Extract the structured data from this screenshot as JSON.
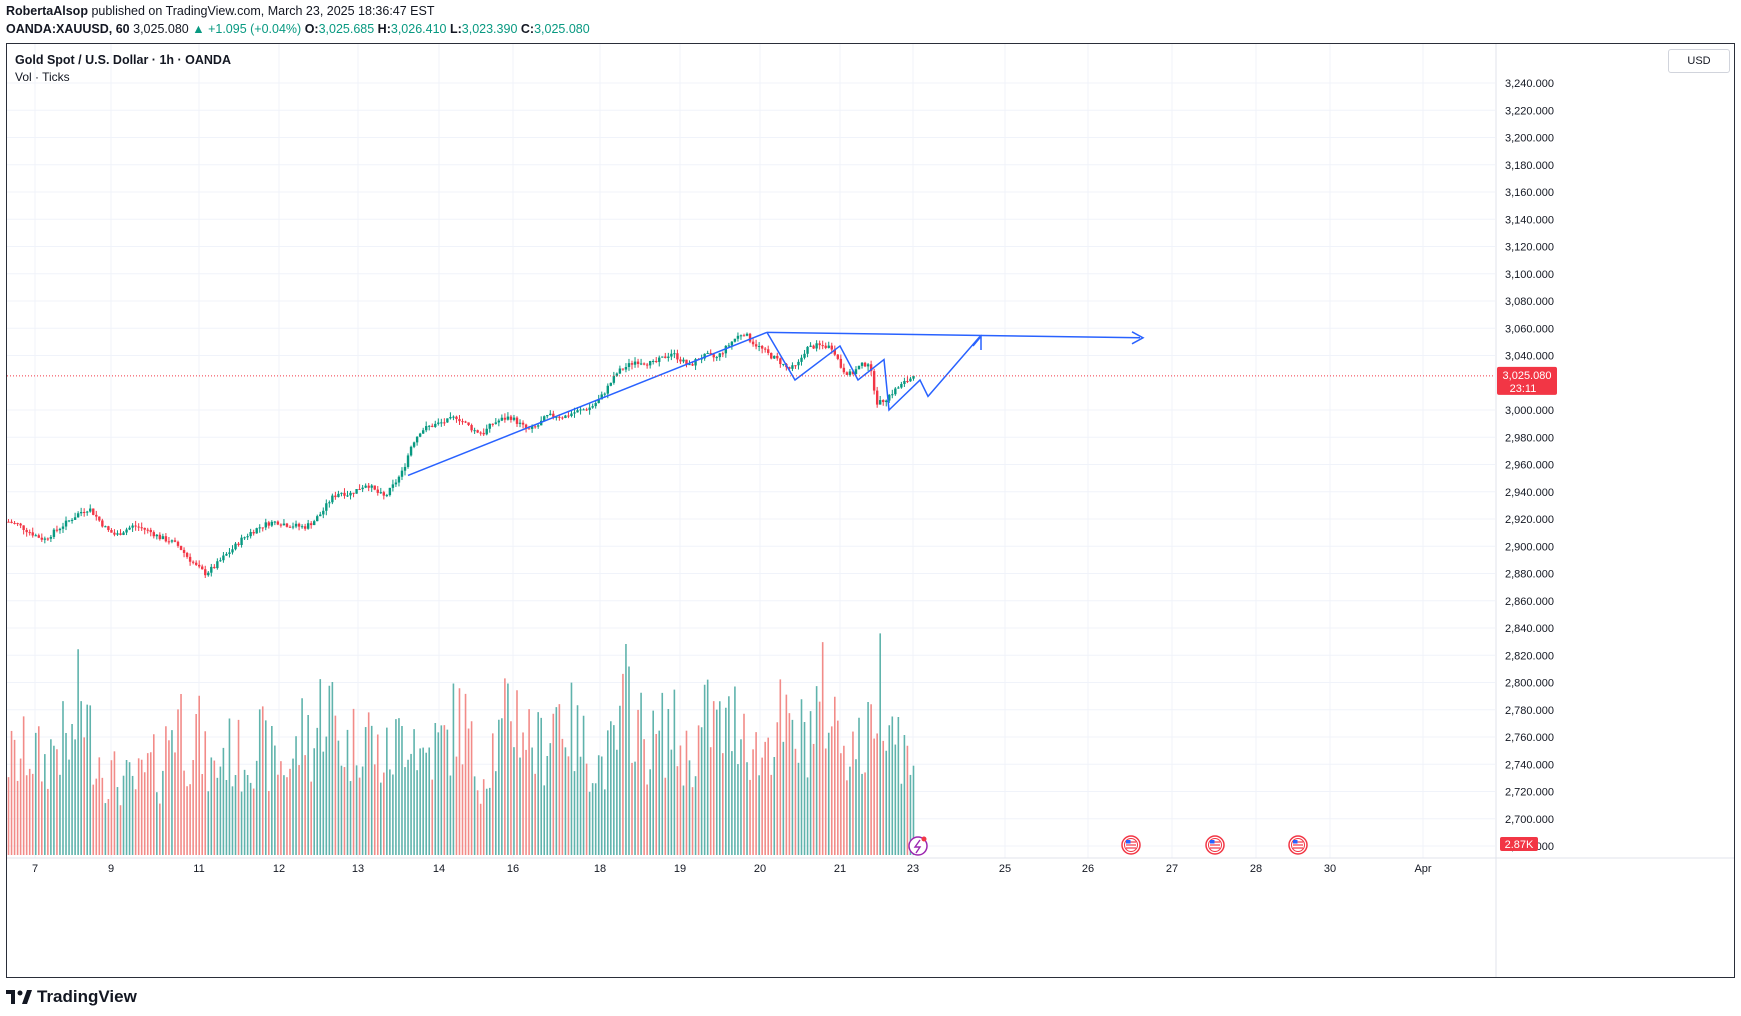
{
  "header": {
    "author": "RobertaAlsop",
    "published": "published on TradingView.com, March 23, 2025 18:36:47 EST",
    "symbol_line": {
      "symbol": "OANDA:XAUUSD, 60",
      "last": "3,025.080",
      "change": "+1.095 (+0.04%)",
      "o_label": "O:",
      "o": "3,025.685",
      "h_label": "H:",
      "h": "3,026.410",
      "l_label": "L:",
      "l": "3,023.390",
      "c_label": "C:",
      "c": "3,025.080"
    }
  },
  "legend": {
    "title": "Gold Spot / U.S. Dollar · 1h · OANDA",
    "indicator": "Vol · Ticks"
  },
  "currency_button": "USD",
  "price_badge": {
    "price": "3,025.080",
    "countdown": "23:11"
  },
  "volume_badge": "2.87K",
  "footer": {
    "brand": "TradingView"
  },
  "colors": {
    "up": "#089981",
    "down": "#f23645",
    "vol_up": "#5fb3ac",
    "vol_down": "#f28b88",
    "drawing": "#2962ff",
    "grid": "#f0f3fa"
  },
  "chart_data": {
    "type": "candlestick",
    "title": "Gold Spot / U.S. Dollar · 1h · OANDA",
    "ylim": [
      2660,
      3250
    ],
    "y_ticks": [
      3240,
      3220,
      3200,
      3180,
      3160,
      3140,
      3120,
      3100,
      3080,
      3060,
      3040,
      3000,
      2980,
      2960,
      2940,
      2920,
      2900,
      2880,
      2860,
      2840,
      2820,
      2800,
      2780,
      2760,
      2740,
      2720,
      2700,
      2680
    ],
    "y_tick_labels": [
      "3,240.000",
      "3,220.000",
      "3,200.000",
      "3,180.000",
      "3,160.000",
      "3,140.000",
      "3,120.000",
      "3,100.000",
      "3,080.000",
      "3,060.000",
      "3,040.000",
      "3,000.000",
      "2,980.000",
      "2,960.000",
      "2,940.000",
      "2,920.000",
      "2,900.000",
      "2,880.000",
      "2,860.000",
      "2,840.000",
      "2,820.000",
      "2,800.000",
      "2,780.000",
      "2,760.000",
      "2,740.000",
      "2,720.000",
      "2,700.000",
      "2,680.000"
    ],
    "x_ticks": [
      "7",
      "9",
      "11",
      "12",
      "13",
      "14",
      "16",
      "18",
      "19",
      "20",
      "21",
      "23",
      "25",
      "26",
      "27",
      "28",
      "30",
      "Apr"
    ],
    "last_price": 3025.08,
    "price_path": [
      2918,
      2916,
      2912,
      2908,
      2905,
      2910,
      2915,
      2920,
      2925,
      2928,
      2920,
      2912,
      2908,
      2912,
      2915,
      2913,
      2910,
      2906,
      2904,
      2900,
      2892,
      2885,
      2880,
      2885,
      2892,
      2898,
      2905,
      2910,
      2914,
      2917,
      2918,
      2916,
      2915,
      2914,
      2918,
      2925,
      2935,
      2940,
      2938,
      2942,
      2946,
      2940,
      2936,
      2945,
      2955,
      2975,
      2985,
      2988,
      2990,
      2992,
      2995,
      2990,
      2985,
      2983,
      2990,
      2993,
      2995,
      2990,
      2985,
      2988,
      2995,
      2996,
      2995,
      2998,
      3000,
      3002,
      3008,
      3018,
      3028,
      3032,
      3036,
      3035,
      3034,
      3038,
      3042,
      3037,
      3032,
      3038,
      3040,
      3038,
      3045,
      3052,
      3057,
      3050,
      3045,
      3040,
      3036,
      3030,
      3032,
      3045,
      3047,
      3047,
      3046,
      3030,
      3026,
      3032,
      3035,
      3004,
      3009,
      3015,
      3020,
      3025
    ],
    "volume_path": [
      120,
      115,
      130,
      125,
      110,
      135,
      140,
      130,
      200,
      150,
      125,
      100,
      95,
      90,
      85,
      95,
      110,
      100,
      160,
      180,
      130,
      160,
      110,
      100,
      130,
      125,
      120,
      130,
      140,
      120,
      115,
      110,
      120,
      160,
      130,
      190,
      180,
      140,
      130,
      150,
      160,
      125,
      115,
      130,
      150,
      170,
      120,
      130,
      135,
      140,
      170,
      160,
      110,
      100,
      135,
      140,
      190,
      170,
      150,
      130,
      140,
      185,
      175,
      150,
      135,
      125,
      110,
      120,
      140,
      200,
      170,
      140,
      135,
      150,
      160,
      130,
      120,
      140,
      170,
      160,
      150,
      165,
      175,
      130,
      120,
      150,
      165,
      145,
      140,
      150,
      170,
      195,
      165,
      150,
      140,
      130,
      140,
      220,
      210,
      160,
      130,
      90
    ],
    "drawings": [
      {
        "type": "trend_line",
        "points": [
          [
            "13",
            2952
          ],
          [
            "20",
            3057
          ]
        ]
      },
      {
        "type": "ray_arrow",
        "points": [
          [
            "20",
            3057
          ],
          [
            "25+",
            3053
          ]
        ]
      },
      {
        "type": "path",
        "points": [
          [
            "20",
            3057
          ],
          [
            "20.5",
            3022
          ],
          [
            "21",
            3047
          ],
          [
            "21.3",
            3022
          ],
          [
            "22",
            3037
          ],
          [
            "22.1",
            3000
          ],
          [
            "22.3",
            3022
          ],
          [
            "22.5",
            3010
          ],
          [
            "23",
            3054
          ]
        ]
      }
    ]
  }
}
